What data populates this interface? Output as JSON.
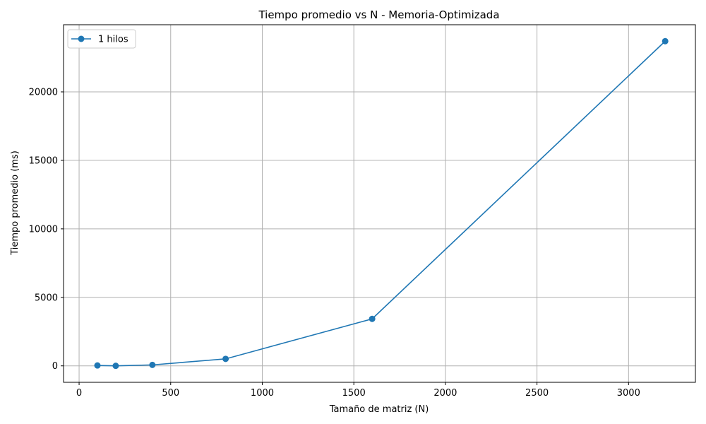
{
  "chart_data": {
    "type": "line",
    "title": "Tiempo promedio vs N - Memoria-Optimizada",
    "xlabel": "Tamaño de matriz (N)",
    "ylabel": "Tiempo promedio (ms)",
    "xlim": [
      -85,
      3365
    ],
    "ylim": [
      -1200,
      24900
    ],
    "xticks": [
      0,
      500,
      1000,
      1500,
      2000,
      2500,
      3000
    ],
    "yticks": [
      0,
      5000,
      10000,
      15000,
      20000
    ],
    "grid": true,
    "legend_position": "top-left",
    "series": [
      {
        "name": "1 hilos",
        "color": "#1f77b4",
        "marker": "circle",
        "x": [
          100,
          200,
          400,
          800,
          1600,
          3200
        ],
        "y": [
          30,
          5,
          70,
          510,
          3430,
          23700
        ]
      }
    ]
  }
}
